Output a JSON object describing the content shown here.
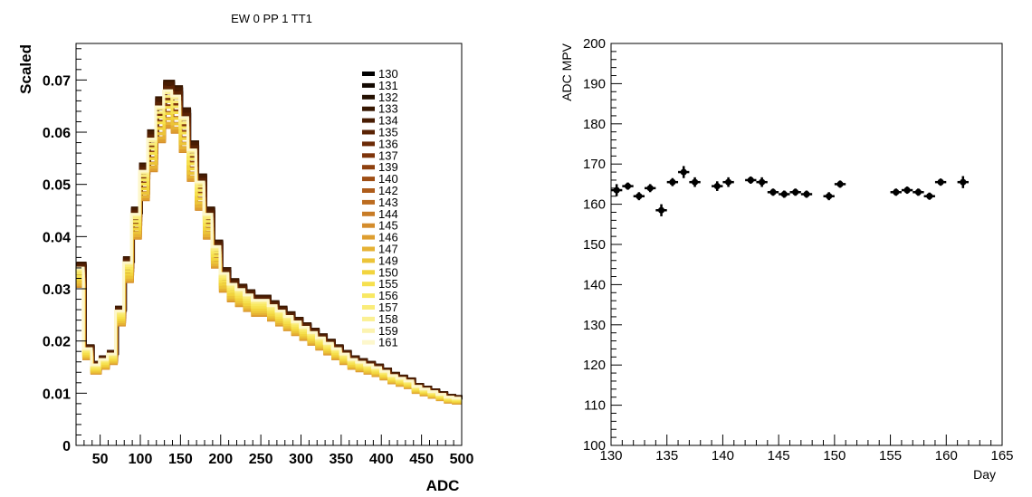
{
  "chart_data": [
    {
      "type": "step",
      "title": "EW 0 PP 1 TT1",
      "xlabel": "ADC",
      "ylabel": "Scaled",
      "xlim": [
        20,
        500
      ],
      "ylim": [
        0,
        0.077
      ],
      "xticks": [
        50,
        100,
        150,
        200,
        250,
        300,
        350,
        400,
        450,
        500
      ],
      "xtick_labels": [
        "50",
        "100",
        "150",
        "200",
        "250",
        "300",
        "350",
        "400",
        "450",
        "500"
      ],
      "yticks": [
        0,
        0.01,
        0.02,
        0.03,
        0.04,
        0.05,
        0.06,
        0.07
      ],
      "ytick_labels": [
        "0",
        "0.01",
        "0.02",
        "0.03",
        "0.04",
        "0.05",
        "0.06",
        "0.07"
      ],
      "bin_edges": [
        20,
        30,
        40,
        50,
        60,
        70,
        80,
        90,
        100,
        110,
        120,
        130,
        140,
        150,
        160,
        170,
        180,
        190,
        200,
        210,
        220,
        230,
        240,
        250,
        260,
        270,
        280,
        290,
        300,
        310,
        320,
        330,
        340,
        350,
        360,
        370,
        380,
        390,
        400,
        410,
        420,
        430,
        440,
        450,
        460,
        470,
        480,
        490,
        500
      ],
      "base_values": [
        0.033,
        0.018,
        0.015,
        0.016,
        0.017,
        0.025,
        0.034,
        0.043,
        0.051,
        0.057,
        0.063,
        0.066,
        0.065,
        0.061,
        0.055,
        0.049,
        0.043,
        0.037,
        0.032,
        0.03,
        0.029,
        0.028,
        0.027,
        0.027,
        0.026,
        0.025,
        0.024,
        0.023,
        0.022,
        0.021,
        0.02,
        0.019,
        0.018,
        0.017,
        0.016,
        0.0155,
        0.015,
        0.0145,
        0.0138,
        0.013,
        0.0125,
        0.012,
        0.011,
        0.0105,
        0.01,
        0.0095,
        0.009,
        0.0088
      ],
      "series": [
        {
          "name": "130",
          "color": "#000000"
        },
        {
          "name": "131",
          "color": "#120800"
        },
        {
          "name": "132",
          "color": "#241000"
        },
        {
          "name": "133",
          "color": "#361600"
        },
        {
          "name": "134",
          "color": "#481c02"
        },
        {
          "name": "135",
          "color": "#5a2304"
        },
        {
          "name": "136",
          "color": "#6c2a06"
        },
        {
          "name": "137",
          "color": "#7e340a"
        },
        {
          "name": "139",
          "color": "#8e400e"
        },
        {
          "name": "140",
          "color": "#9e4e14"
        },
        {
          "name": "142",
          "color": "#ae5c1a"
        },
        {
          "name": "143",
          "color": "#bc6c20"
        },
        {
          "name": "144",
          "color": "#c87c26"
        },
        {
          "name": "145",
          "color": "#d48c2c"
        },
        {
          "name": "146",
          "color": "#de9e30"
        },
        {
          "name": "147",
          "color": "#e6b234"
        },
        {
          "name": "149",
          "color": "#ecc438"
        },
        {
          "name": "150",
          "color": "#f2d43e"
        },
        {
          "name": "155",
          "color": "#f6e04e"
        },
        {
          "name": "156",
          "color": "#f8e862"
        },
        {
          "name": "157",
          "color": "#faec7a"
        },
        {
          "name": "158",
          "color": "#fbf094"
        },
        {
          "name": "159",
          "color": "#fcf3b0"
        },
        {
          "name": "161",
          "color": "#fdf7cc"
        }
      ]
    },
    {
      "type": "scatter",
      "xlabel": "Day",
      "ylabel": "ADC MPV",
      "xlim": [
        130,
        165
      ],
      "ylim": [
        100,
        200
      ],
      "xticks": [
        130,
        135,
        140,
        145,
        150,
        155,
        160,
        165
      ],
      "xtick_labels": [
        "130",
        "135",
        "140",
        "145",
        "150",
        "155",
        "160",
        "165"
      ],
      "yticks": [
        100,
        110,
        120,
        130,
        140,
        150,
        160,
        170,
        180,
        190,
        200
      ],
      "ytick_labels": [
        "100",
        "110",
        "120",
        "130",
        "140",
        "150",
        "160",
        "170",
        "180",
        "190",
        "200"
      ],
      "x": [
        130.5,
        131.5,
        132.5,
        133.5,
        134.5,
        135.5,
        136.5,
        137.5,
        139.5,
        140.5,
        142.5,
        143.5,
        144.5,
        145.5,
        146.5,
        147.5,
        149.5,
        150.5,
        155.5,
        156.5,
        157.5,
        158.5,
        159.5,
        161.5
      ],
      "y": [
        163.5,
        164.5,
        162.0,
        164.0,
        158.5,
        165.5,
        168.0,
        165.5,
        164.5,
        165.5,
        166.0,
        165.5,
        163.0,
        162.5,
        163.0,
        162.5,
        162.0,
        165.0,
        163.0,
        163.5,
        163.0,
        162.0,
        165.5,
        165.5
      ],
      "yerr": [
        1.5,
        0.8,
        1.0,
        1.0,
        1.5,
        1.0,
        1.5,
        1.2,
        1.2,
        1.2,
        0.8,
        1.2,
        0.6,
        0.6,
        0.6,
        0.6,
        1.0,
        0.6,
        0.6,
        0.6,
        0.8,
        0.8,
        0.6,
        1.5
      ]
    }
  ]
}
